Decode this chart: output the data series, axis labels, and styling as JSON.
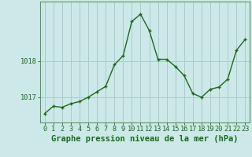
{
  "x": [
    0,
    1,
    2,
    3,
    4,
    5,
    6,
    7,
    8,
    9,
    10,
    11,
    12,
    13,
    14,
    15,
    16,
    17,
    18,
    19,
    20,
    21,
    22,
    23
  ],
  "y": [
    1016.55,
    1016.75,
    1016.72,
    1016.82,
    1016.88,
    1017.0,
    1017.15,
    1017.3,
    1017.9,
    1018.15,
    1019.1,
    1019.3,
    1018.85,
    1018.05,
    1018.05,
    1017.85,
    1017.6,
    1017.1,
    1017.0,
    1017.22,
    1017.28,
    1017.5,
    1018.3,
    1018.6
  ],
  "line_color": "#1a6b1a",
  "marker_color": "#1a6b1a",
  "bg_color": "#cce8e8",
  "grid_color": "#aacccc",
  "axis_color": "#1a6b1a",
  "border_color": "#5a9a5a",
  "xlabel": "Graphe pression niveau de la mer (hPa)",
  "ytick_values": [
    1017,
    1018
  ],
  "ytick_labels": [
    "1017",
    "1018"
  ],
  "ylim": [
    1016.3,
    1019.65
  ],
  "xlim": [
    -0.5,
    23.5
  ],
  "xlabel_fontsize": 7.5,
  "tick_fontsize": 6.2
}
